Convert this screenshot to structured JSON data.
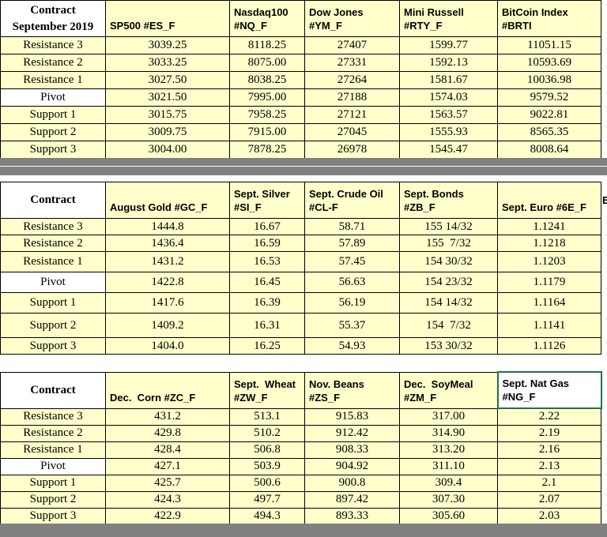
{
  "colors": {
    "cell_fill": "#FFFFCB",
    "pivot_fill": "#FFFFFF",
    "separator": "#808080",
    "selected_border": "#1F7246",
    "grid": "#000000"
  },
  "clipped_column": {
    "text": "E"
  },
  "tables": [
    {
      "name": "index-futures-pivots",
      "columns": [
        {
          "label": "Contract\nSeptember 2019"
        },
        {
          "label": "SP500 #ES_F"
        },
        {
          "label": "Nasdaq100\n#NQ_F"
        },
        {
          "label": "Dow Jones\n#YM_F"
        },
        {
          "label": "Mini Russell\n#RTY_F"
        },
        {
          "label": "BitCoin Index\n#BRTI"
        }
      ],
      "rows": [
        {
          "label": "Resistance 3",
          "values": [
            "3039.25",
            "8118.25",
            "27407",
            "1599.77",
            "11051.15"
          ]
        },
        {
          "label": "Resistance 2",
          "values": [
            "3033.25",
            "8075.00",
            "27331",
            "1592.13",
            "10593.69"
          ]
        },
        {
          "label": "Resistance 1",
          "values": [
            "3027.50",
            "8038.25",
            "27264",
            "1581.67",
            "10036.98"
          ]
        },
        {
          "label": "Pivot",
          "values": [
            "3021.50",
            "7995.00",
            "27188",
            "1574.03",
            "9579.52"
          ]
        },
        {
          "label": "Support 1",
          "values": [
            "3015.75",
            "7958.25",
            "27121",
            "1563.57",
            "9022.81"
          ]
        },
        {
          "label": "Support 2",
          "values": [
            "3009.75",
            "7915.00",
            "27045",
            "1555.93",
            "8565.35"
          ]
        },
        {
          "label": "Support 3",
          "values": [
            "3004.00",
            "7878.25",
            "26978",
            "1545.47",
            "8008.64"
          ]
        }
      ]
    },
    {
      "name": "commodity-futures-pivots",
      "columns": [
        {
          "label": "Contract"
        },
        {
          "label": "August Gold #GC_F"
        },
        {
          "label": "Sept. Silver\n#SI_F"
        },
        {
          "label": "Sept. Crude Oil\n#CL-F"
        },
        {
          "label": "Sept. Bonds\n#ZB_F"
        },
        {
          "label": "Sept. Euro #6E_F"
        }
      ],
      "rows": [
        {
          "label": "Resistance 3",
          "values": [
            "1444.8",
            "16.67",
            "58.71",
            "155 14/32",
            "1.1241"
          ]
        },
        {
          "label": "Resistance 2",
          "values": [
            "1436.4",
            "16.59",
            "57.89",
            "155  7/32",
            "1.1218"
          ]
        },
        {
          "label": "Resistance 1",
          "values": [
            "1431.2",
            "16.53",
            "57.45",
            "154 30/32",
            "1.1203"
          ]
        },
        {
          "label": "Pivot",
          "values": [
            "1422.8",
            "16.45",
            "56.63",
            "154 23/32",
            "1.1179"
          ]
        },
        {
          "label": "Support 1",
          "values": [
            "1417.6",
            "16.39",
            "56.19",
            "154 14/32",
            "1.1164"
          ]
        },
        {
          "label": "Support 2",
          "values": [
            "1409.2",
            "16.31",
            "55.37",
            "154  7/32",
            "1.1141"
          ]
        },
        {
          "label": "Support 3",
          "values": [
            "1404.0",
            "16.25",
            "54.93",
            "153 30/32",
            "1.1126"
          ]
        }
      ]
    },
    {
      "name": "grain-futures-pivots",
      "columns": [
        {
          "label": "Contract"
        },
        {
          "label": "Dec.  Corn #ZC_F"
        },
        {
          "label": "Sept.  Wheat\n#ZW_F"
        },
        {
          "label": "Nov. Beans #ZS_F"
        },
        {
          "label": "Dec.  SoyMeal\n#ZM_F"
        },
        {
          "label": "Sept. Nat Gas\n#NG_F",
          "selected": true
        }
      ],
      "rows": [
        {
          "label": "Resistance 3",
          "values": [
            "431.2",
            "513.1",
            "915.83",
            "317.00",
            "2.22"
          ]
        },
        {
          "label": "Resistance 2",
          "values": [
            "429.8",
            "510.2",
            "912.42",
            "314.90",
            "2.19"
          ]
        },
        {
          "label": "Resistance 1",
          "values": [
            "428.4",
            "506.8",
            "908.33",
            "313.20",
            "2.16"
          ]
        },
        {
          "label": "Pivot",
          "values": [
            "427.1",
            "503.9",
            "904.92",
            "311.10",
            "2.13"
          ]
        },
        {
          "label": "Support 1",
          "values": [
            "425.7",
            "500.6",
            "900.8",
            "309.4",
            "2.1"
          ]
        },
        {
          "label": "Support 2",
          "values": [
            "424.3",
            "497.7",
            "897.42",
            "307.30",
            "2.07"
          ]
        },
        {
          "label": "Support 3",
          "values": [
            "422.9",
            "494.3",
            "893.33",
            "305.60",
            "2.03"
          ]
        }
      ]
    }
  ]
}
